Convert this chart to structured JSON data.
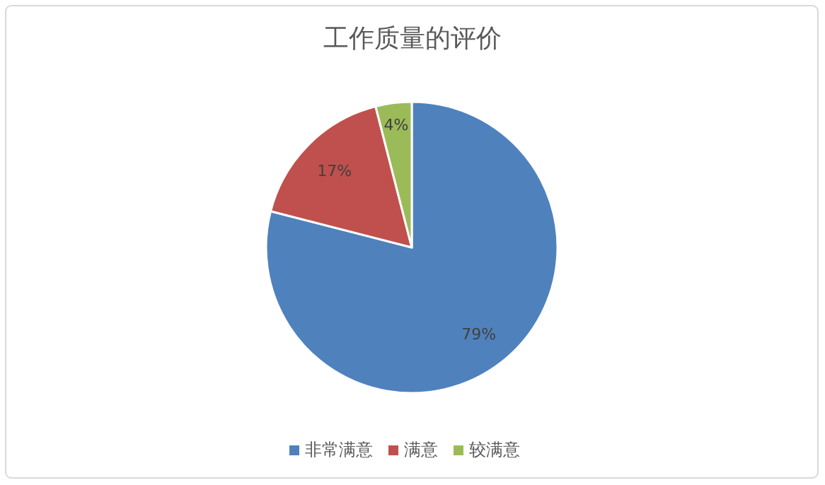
{
  "chart_data": {
    "type": "pie",
    "title": "工作质量的评价",
    "categories": [
      "非常满意",
      "满意",
      "较满意"
    ],
    "values": [
      79,
      17,
      4
    ],
    "colors": [
      "#4f81bd",
      "#c0504d",
      "#9bbb59"
    ],
    "value_labels": [
      "79%",
      "17%",
      "4%"
    ],
    "legend": "bottom"
  }
}
